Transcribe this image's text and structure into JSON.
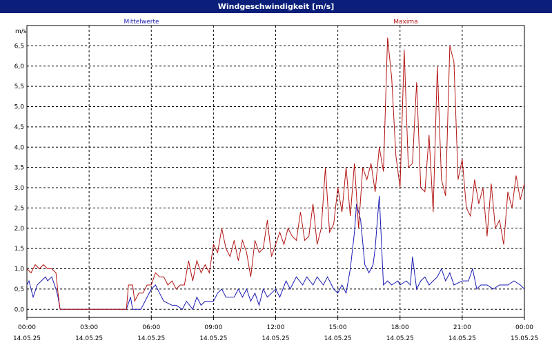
{
  "window": {
    "title": "Windgeschwindigkeit [m/s]"
  },
  "chart_data": {
    "type": "line",
    "title": "Windgeschwindigkeit [m/s]",
    "ylabel": "m/s",
    "ylim": [
      -0.2,
      7.0
    ],
    "y_ticks": [
      "0,0",
      "0,5",
      "1,0",
      "1,5",
      "2,0",
      "2,5",
      "3,0",
      "3,5",
      "4,0",
      "4,5",
      "5,0",
      "5,5",
      "6,0",
      "6,5"
    ],
    "x_range_hours": [
      0,
      24
    ],
    "x_ticks": [
      {
        "time": "00:00",
        "date": "14.05.25"
      },
      {
        "time": "03:00",
        "date": "14.05.25"
      },
      {
        "time": "06:00",
        "date": "14.05.25"
      },
      {
        "time": "09:00",
        "date": "14.05.25"
      },
      {
        "time": "12:00",
        "date": "14.05.25"
      },
      {
        "time": "15:00",
        "date": "14.05.25"
      },
      {
        "time": "18:00",
        "date": "14.05.25"
      },
      {
        "time": "21:00",
        "date": "14.05.25"
      },
      {
        "time": "00:00",
        "date": "15.05.25"
      }
    ],
    "grid": true,
    "legend_position": "top",
    "series": [
      {
        "name": "Mittelwerte",
        "color": "#1a1ab4",
        "points": [
          [
            0.0,
            0.6
          ],
          [
            0.1,
            0.7
          ],
          [
            0.3,
            0.3
          ],
          [
            0.5,
            0.6
          ],
          [
            0.7,
            0.7
          ],
          [
            0.9,
            0.8
          ],
          [
            1.0,
            0.7
          ],
          [
            1.2,
            0.8
          ],
          [
            1.4,
            0.5
          ],
          [
            1.5,
            0.3
          ],
          [
            1.6,
            0.0
          ],
          [
            4.8,
            0.0
          ],
          [
            5.0,
            0.3
          ],
          [
            5.1,
            0.0
          ],
          [
            5.5,
            0.0
          ],
          [
            5.8,
            0.3
          ],
          [
            6.0,
            0.5
          ],
          [
            6.2,
            0.6
          ],
          [
            6.4,
            0.4
          ],
          [
            6.6,
            0.2
          ],
          [
            7.0,
            0.1
          ],
          [
            7.2,
            0.1
          ],
          [
            7.5,
            0.0
          ],
          [
            7.7,
            0.2
          ],
          [
            8.0,
            0.0
          ],
          [
            8.2,
            0.3
          ],
          [
            8.4,
            0.1
          ],
          [
            8.6,
            0.2
          ],
          [
            9.0,
            0.2
          ],
          [
            9.2,
            0.4
          ],
          [
            9.4,
            0.5
          ],
          [
            9.6,
            0.3
          ],
          [
            10.0,
            0.3
          ],
          [
            10.2,
            0.5
          ],
          [
            10.4,
            0.3
          ],
          [
            10.6,
            0.5
          ],
          [
            10.8,
            0.2
          ],
          [
            11.0,
            0.4
          ],
          [
            11.2,
            0.1
          ],
          [
            11.4,
            0.5
          ],
          [
            11.6,
            0.3
          ],
          [
            11.8,
            0.4
          ],
          [
            12.0,
            0.5
          ],
          [
            12.2,
            0.3
          ],
          [
            12.5,
            0.7
          ],
          [
            12.7,
            0.5
          ],
          [
            13.0,
            0.8
          ],
          [
            13.3,
            0.6
          ],
          [
            13.5,
            0.8
          ],
          [
            13.8,
            0.6
          ],
          [
            14.0,
            0.8
          ],
          [
            14.3,
            0.6
          ],
          [
            14.5,
            0.8
          ],
          [
            14.8,
            0.5
          ],
          [
            15.0,
            0.4
          ],
          [
            15.2,
            0.6
          ],
          [
            15.4,
            0.4
          ],
          [
            15.6,
            1.0
          ],
          [
            15.8,
            1.9
          ],
          [
            15.9,
            2.6
          ],
          [
            16.1,
            2.2
          ],
          [
            16.3,
            1.1
          ],
          [
            16.5,
            0.9
          ],
          [
            16.7,
            1.1
          ],
          [
            16.8,
            1.5
          ],
          [
            17.0,
            2.8
          ],
          [
            17.2,
            0.6
          ],
          [
            17.4,
            0.7
          ],
          [
            17.6,
            0.6
          ],
          [
            17.9,
            0.7
          ],
          [
            18.0,
            0.6
          ],
          [
            18.3,
            0.7
          ],
          [
            18.5,
            0.6
          ],
          [
            18.6,
            1.3
          ],
          [
            18.8,
            0.5
          ],
          [
            19.0,
            0.7
          ],
          [
            19.2,
            0.8
          ],
          [
            19.4,
            0.6
          ],
          [
            19.6,
            0.7
          ],
          [
            19.8,
            0.8
          ],
          [
            20.0,
            1.0
          ],
          [
            20.2,
            0.7
          ],
          [
            20.4,
            0.9
          ],
          [
            20.6,
            0.6
          ],
          [
            21.0,
            0.7
          ],
          [
            21.3,
            0.7
          ],
          [
            21.5,
            1.0
          ],
          [
            21.7,
            0.5
          ],
          [
            21.9,
            0.6
          ],
          [
            22.2,
            0.6
          ],
          [
            22.5,
            0.5
          ],
          [
            22.8,
            0.6
          ],
          [
            23.0,
            0.6
          ],
          [
            23.2,
            0.6
          ],
          [
            23.5,
            0.7
          ],
          [
            23.8,
            0.6
          ],
          [
            24.0,
            0.5
          ]
        ]
      },
      {
        "name": "Maxima",
        "color": "#b41414",
        "points": [
          [
            0.0,
            1.0
          ],
          [
            0.2,
            0.9
          ],
          [
            0.4,
            1.1
          ],
          [
            0.6,
            1.0
          ],
          [
            0.8,
            1.1
          ],
          [
            1.0,
            1.0
          ],
          [
            1.2,
            1.0
          ],
          [
            1.4,
            0.9
          ],
          [
            1.5,
            0.4
          ],
          [
            1.6,
            0.0
          ],
          [
            4.8,
            0.0
          ],
          [
            4.9,
            0.6
          ],
          [
            5.1,
            0.6
          ],
          [
            5.2,
            0.2
          ],
          [
            5.4,
            0.4
          ],
          [
            5.6,
            0.4
          ],
          [
            5.8,
            0.6
          ],
          [
            6.0,
            0.6
          ],
          [
            6.2,
            0.9
          ],
          [
            6.4,
            0.8
          ],
          [
            6.6,
            0.8
          ],
          [
            6.8,
            0.6
          ],
          [
            7.0,
            0.7
          ],
          [
            7.2,
            0.5
          ],
          [
            7.4,
            0.6
          ],
          [
            7.6,
            0.6
          ],
          [
            7.8,
            1.2
          ],
          [
            8.0,
            0.7
          ],
          [
            8.2,
            1.2
          ],
          [
            8.4,
            0.9
          ],
          [
            8.6,
            1.1
          ],
          [
            8.8,
            0.9
          ],
          [
            9.0,
            1.6
          ],
          [
            9.2,
            1.4
          ],
          [
            9.4,
            2.0
          ],
          [
            9.6,
            1.5
          ],
          [
            9.8,
            1.3
          ],
          [
            10.0,
            1.7
          ],
          [
            10.2,
            1.2
          ],
          [
            10.4,
            1.7
          ],
          [
            10.6,
            1.4
          ],
          [
            10.8,
            0.8
          ],
          [
            11.0,
            1.7
          ],
          [
            11.2,
            1.4
          ],
          [
            11.4,
            1.5
          ],
          [
            11.6,
            2.2
          ],
          [
            11.8,
            1.3
          ],
          [
            12.0,
            1.6
          ],
          [
            12.2,
            1.9
          ],
          [
            12.4,
            1.6
          ],
          [
            12.6,
            2.0
          ],
          [
            12.8,
            1.8
          ],
          [
            13.0,
            1.7
          ],
          [
            13.2,
            2.4
          ],
          [
            13.4,
            1.7
          ],
          [
            13.6,
            1.8
          ],
          [
            13.8,
            2.6
          ],
          [
            14.0,
            1.6
          ],
          [
            14.2,
            2.0
          ],
          [
            14.4,
            3.5
          ],
          [
            14.6,
            1.9
          ],
          [
            14.8,
            2.1
          ],
          [
            15.0,
            3.0
          ],
          [
            15.2,
            2.4
          ],
          [
            15.4,
            3.5
          ],
          [
            15.6,
            2.3
          ],
          [
            15.8,
            3.6
          ],
          [
            16.0,
            2.0
          ],
          [
            16.2,
            3.5
          ],
          [
            16.4,
            3.2
          ],
          [
            16.6,
            3.6
          ],
          [
            16.8,
            2.9
          ],
          [
            17.0,
            4.0
          ],
          [
            17.2,
            3.4
          ],
          [
            17.4,
            6.7
          ],
          [
            17.6,
            5.7
          ],
          [
            17.8,
            3.8
          ],
          [
            18.0,
            3.0
          ],
          [
            18.2,
            6.4
          ],
          [
            18.4,
            3.5
          ],
          [
            18.6,
            3.6
          ],
          [
            18.8,
            5.6
          ],
          [
            19.0,
            3.0
          ],
          [
            19.2,
            2.9
          ],
          [
            19.4,
            4.3
          ],
          [
            19.6,
            2.4
          ],
          [
            19.8,
            6.0
          ],
          [
            20.0,
            3.2
          ],
          [
            20.2,
            2.8
          ],
          [
            20.4,
            6.5
          ],
          [
            20.6,
            6.1
          ],
          [
            20.8,
            3.2
          ],
          [
            21.0,
            3.7
          ],
          [
            21.2,
            2.5
          ],
          [
            21.4,
            2.3
          ],
          [
            21.6,
            3.2
          ],
          [
            21.8,
            2.6
          ],
          [
            22.0,
            3.0
          ],
          [
            22.2,
            1.8
          ],
          [
            22.4,
            3.1
          ],
          [
            22.6,
            2.0
          ],
          [
            22.8,
            2.2
          ],
          [
            23.0,
            1.6
          ],
          [
            23.2,
            2.9
          ],
          [
            23.4,
            2.5
          ],
          [
            23.6,
            3.3
          ],
          [
            23.8,
            2.7
          ],
          [
            24.0,
            3.1
          ]
        ]
      }
    ]
  }
}
